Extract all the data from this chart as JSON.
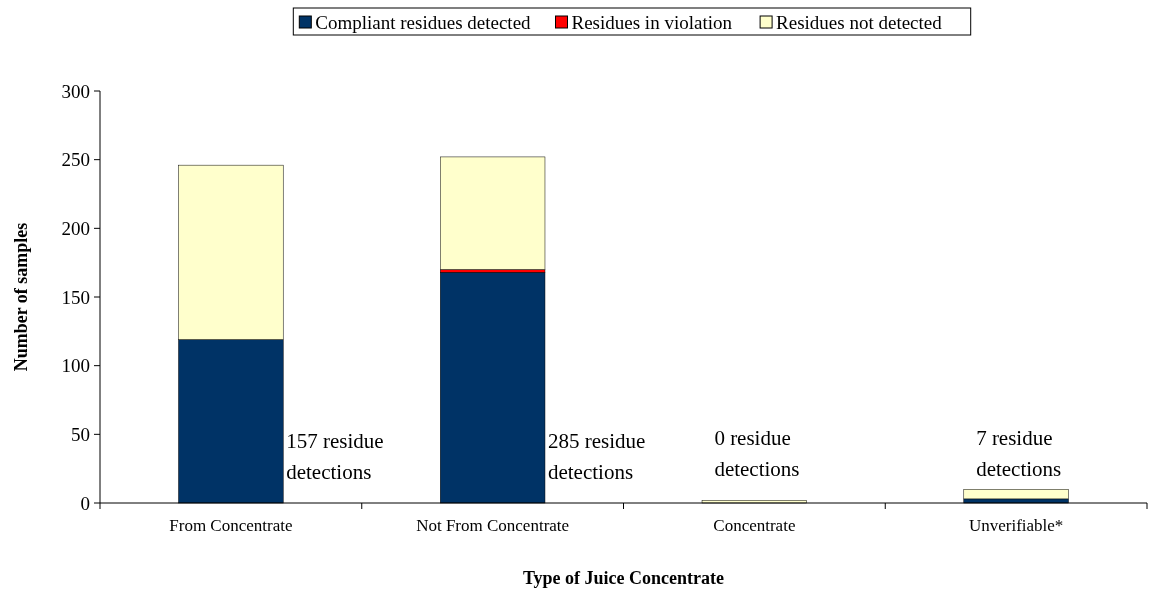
{
  "chart_data": {
    "type": "bar",
    "stacked": true,
    "xlabel": "Type of Juice Concentrate",
    "ylabel": "Number of samples",
    "categories": [
      "From Concentrate",
      "Not From Concentrate",
      "Concentrate",
      "Unverifiable*"
    ],
    "series": [
      {
        "name": "Compliant residues detected",
        "color": "#003366",
        "values": [
          119,
          168,
          0,
          3
        ]
      },
      {
        "name": "Residues in violation",
        "color": "#ff0000",
        "values": [
          0,
          2,
          0,
          0
        ]
      },
      {
        "name": "Residues not detected",
        "color": "#ffffcc",
        "values": [
          127,
          82,
          2,
          7
        ]
      }
    ],
    "ylim": [
      0,
      300
    ],
    "yticks": [
      0,
      50,
      100,
      150,
      200,
      250,
      300
    ],
    "legend": "top",
    "grid": false,
    "annotations": [
      "157 residue detections",
      "285 residue detections",
      "0 residue detections",
      "7 residue detections"
    ]
  }
}
